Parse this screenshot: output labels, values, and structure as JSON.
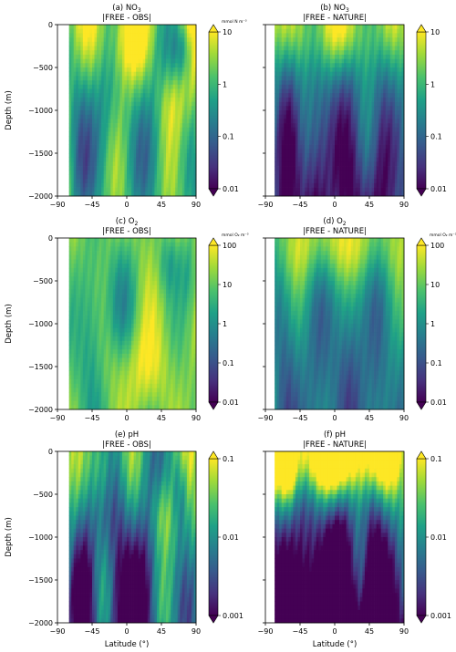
{
  "figure": {
    "colormap": [
      "#440154",
      "#46327e",
      "#365c8d",
      "#277f8e",
      "#1fa187",
      "#4ac16d",
      "#a0da39",
      "#fde725"
    ],
    "missing_color": "#ffffff"
  },
  "chart_data": [
    {
      "type": "heatmap",
      "panel_label": "(a) NO",
      "label_sub": "3",
      "subtitle": "|FREE - OBS|",
      "xlabel": "",
      "ylabel": "Depth (m)",
      "xlim": [
        -90,
        90
      ],
      "ylim": [
        -2000,
        0
      ],
      "xticks": [
        "−90",
        "−45",
        "0",
        "45",
        "90"
      ],
      "yticks": [
        "0",
        "−500",
        "−1000",
        "−1500",
        "−2000"
      ],
      "colorbar": {
        "scale": "log",
        "vmin": 0.01,
        "vmax": 10,
        "ticks": [
          "10",
          "1",
          "0.1",
          "0.01"
        ],
        "units": "mmol N m⁻³"
      },
      "field": {
        "data_start_lat": -76,
        "base_log_value": 0.55,
        "amplitude": 0.8,
        "depth_gradient": 0.4,
        "troughs": [
          [
            -62,
            1250,
            18,
            0.75
          ],
          [
            -30,
            1150,
            22,
            0.75
          ],
          [
            35,
            1150,
            30,
            0.8
          ],
          [
            72,
            300,
            15,
            0.75
          ]
        ],
        "highs": [
          [
            -5,
            200,
            30,
            0.55
          ],
          [
            55,
            900,
            20,
            0.5
          ]
        ]
      }
    },
    {
      "type": "heatmap",
      "panel_label": "(b) NO",
      "label_sub": "3",
      "subtitle": "|FREE - NATURE|",
      "xlabel": "",
      "ylabel": "",
      "xlim": [
        -90,
        90
      ],
      "ylim": [
        -2000,
        0
      ],
      "xticks": [
        "−90",
        "−45",
        "0",
        "45",
        "90"
      ],
      "yticks": [],
      "colorbar": {
        "scale": "log",
        "vmin": 0.01,
        "vmax": 10,
        "ticks": [
          "10",
          "1",
          "0.1",
          "0.01"
        ],
        "units": ""
      },
      "field": {
        "data_start_lat": -77,
        "base_log_value": -0.55,
        "amplitude": 0.6,
        "depth_gradient": 1.2,
        "troughs": [
          [
            -60,
            1600,
            15,
            0.7
          ],
          [
            -25,
            1500,
            18,
            0.7
          ],
          [
            20,
            1500,
            22,
            0.7
          ],
          [
            60,
            1800,
            15,
            0.6
          ]
        ],
        "highs": [
          [
            0,
            60,
            80,
            0.7
          ]
        ]
      }
    },
    {
      "type": "heatmap",
      "panel_label": "(c) O",
      "label_sub": "2",
      "subtitle": "|FREE - OBS|",
      "xlabel": "",
      "ylabel": "Depth (m)",
      "xlim": [
        -90,
        90
      ],
      "ylim": [
        -2000,
        0
      ],
      "xticks": [
        "−90",
        "−45",
        "0",
        "45",
        "90"
      ],
      "yticks": [
        "0",
        "−500",
        "−1000",
        "−1500",
        "−2000"
      ],
      "colorbar": {
        "scale": "log",
        "vmin": 0.01,
        "vmax": 100,
        "ticks": [
          "100",
          "10",
          "1",
          "0.1",
          "0.01"
        ],
        "units": "mmol O₂ m⁻³"
      },
      "field": {
        "data_start_lat": -75,
        "base_log_value": 1.2,
        "amplitude": 0.6,
        "depth_gradient": 0.2,
        "troughs": [
          [
            -45,
            1200,
            18,
            0.8
          ],
          [
            -5,
            700,
            20,
            0.7
          ],
          [
            55,
            300,
            15,
            0.6
          ],
          [
            80,
            400,
            10,
            0.5
          ]
        ],
        "highs": [
          [
            15,
            1500,
            40,
            0.5
          ]
        ]
      }
    },
    {
      "type": "heatmap",
      "panel_label": "(d) O",
      "label_sub": "2",
      "subtitle": "|FREE - NATURE|",
      "xlabel": "",
      "ylabel": "",
      "xlim": [
        -90,
        90
      ],
      "ylim": [
        -2000,
        0
      ],
      "xticks": [
        "−90",
        "−45",
        "0",
        "45",
        "90"
      ],
      "yticks": [],
      "colorbar": {
        "scale": "log",
        "vmin": 0.01,
        "vmax": 100,
        "ticks": [
          "100",
          "10",
          "1",
          "0.1",
          "0.01"
        ],
        "units": "mmol O₂ m⁻³"
      },
      "field": {
        "data_start_lat": -77,
        "base_log_value": 0.3,
        "amplitude": 0.6,
        "depth_gradient": 0.7,
        "troughs": [
          [
            -65,
            1800,
            15,
            0.6
          ],
          [
            -20,
            1400,
            18,
            0.6
          ],
          [
            20,
            1400,
            22,
            0.6
          ],
          [
            55,
            1600,
            15,
            0.6
          ]
        ],
        "highs": [
          [
            5,
            50,
            85,
            0.9
          ]
        ]
      }
    },
    {
      "type": "heatmap",
      "panel_label": "(e) pH",
      "label_sub": "",
      "subtitle": "|FREE - OBS|",
      "xlabel": "Latitude (°)",
      "ylabel": "Depth (m)",
      "xlim": [
        -90,
        90
      ],
      "ylim": [
        -2000,
        0
      ],
      "xticks": [
        "−90",
        "−45",
        "0",
        "45",
        "90"
      ],
      "yticks": [
        "0",
        "−500",
        "−1000",
        "−1500",
        "−2000"
      ],
      "colorbar": {
        "scale": "log",
        "vmin": 0.001,
        "vmax": 0.1,
        "ticks": [
          "0.1",
          "0.01",
          "0.001"
        ],
        "units": ""
      },
      "field": {
        "data_start_lat": -75,
        "base_log_value": -1.75,
        "amplitude": 0.7,
        "depth_gradient": 0.4,
        "troughs": [
          [
            -55,
            1700,
            18,
            0.8
          ],
          [
            -10,
            1900,
            20,
            0.85
          ],
          [
            25,
            1700,
            20,
            0.8
          ],
          [
            70,
            500,
            12,
            0.6
          ]
        ],
        "highs": [
          [
            45,
            700,
            18,
            0.6
          ],
          [
            -30,
            200,
            15,
            0.5
          ]
        ]
      }
    },
    {
      "type": "heatmap",
      "panel_label": "(f) pH",
      "label_sub": "",
      "subtitle": "|FREE - NATURE|",
      "xlabel": "Latitude (°)",
      "ylabel": "",
      "xlim": [
        -90,
        90
      ],
      "ylim": [
        -2000,
        0
      ],
      "xticks": [
        "−90",
        "−45",
        "0",
        "45",
        "90"
      ],
      "yticks": [],
      "colorbar": {
        "scale": "log",
        "vmin": 0.001,
        "vmax": 0.1,
        "ticks": [
          "0.1",
          "0.01",
          "0.001"
        ],
        "units": ""
      },
      "field": {
        "data_start_lat": -77,
        "base_log_value": -2.2,
        "amplitude": 0.6,
        "depth_gradient": 1.6,
        "troughs": [
          [
            -40,
            1800,
            25,
            0.9
          ],
          [
            10,
            1800,
            20,
            0.9
          ],
          [
            50,
            1500,
            15,
            0.7
          ]
        ],
        "highs": [
          [
            0,
            40,
            85,
            1.2
          ],
          [
            -60,
            200,
            10,
            0.5
          ]
        ]
      }
    }
  ]
}
